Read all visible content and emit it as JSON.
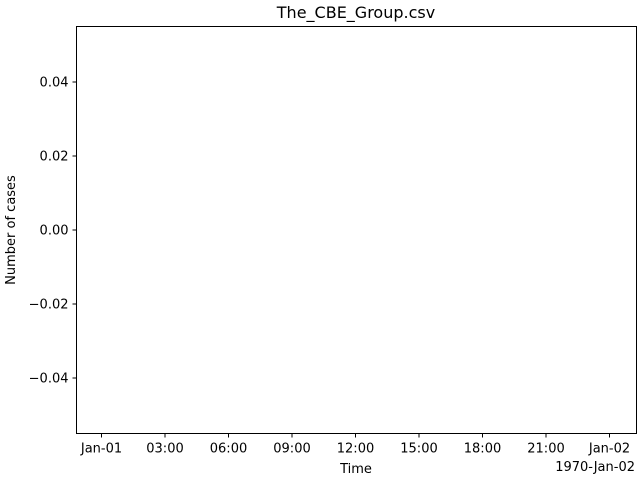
{
  "chart_data": {
    "type": "line",
    "title": "The_CBE_Group.csv",
    "xlabel": "Time",
    "ylabel": "Number of cases",
    "x_tick_labels": [
      "Jan-01",
      "03:00",
      "06:00",
      "09:00",
      "12:00",
      "15:00",
      "18:00",
      "21:00",
      "Jan-02"
    ],
    "x_offset_label": "1970-Jan-02",
    "y_tick_labels": [
      "0.04",
      "0.02",
      "0.00",
      "−0.02",
      "−0.04"
    ],
    "xlim": [
      "1970-01-01 00:00",
      "1970-01-02 00:00"
    ],
    "ylim": [
      -0.055,
      0.055
    ],
    "series": [],
    "grid": false
  }
}
